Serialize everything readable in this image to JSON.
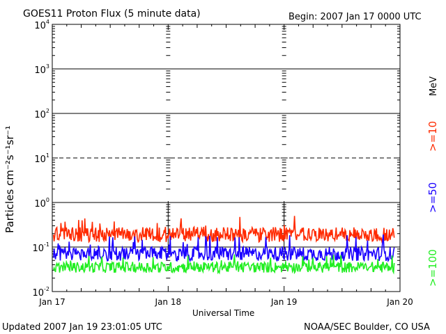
{
  "header": {
    "title": "GOES11 Proton Flux (5 minute data)",
    "begin": "Begin: 2007 Jan 17 0000 UTC"
  },
  "footer": {
    "updated": "Updated 2007 Jan 19 23:01:05 UTC",
    "source": "NOAA/SEC Boulder, CO USA"
  },
  "chart_data": {
    "type": "line",
    "title": "GOES11 Proton Flux (5 minute data)",
    "xlabel": "Universal Time",
    "ylabel": "Particles cm⁻²s⁻¹sr⁻¹",
    "yscale": "log",
    "ylim_exponents": [
      -2,
      4
    ],
    "y_ticks": [
      {
        "base": "10",
        "exp": "-2"
      },
      {
        "base": "10",
        "exp": "-1"
      },
      {
        "base": "10",
        "exp": "0"
      },
      {
        "base": "10",
        "exp": "1"
      },
      {
        "base": "10",
        "exp": "2"
      },
      {
        "base": "10",
        "exp": "3"
      },
      {
        "base": "10",
        "exp": "4"
      }
    ],
    "x_ticks": [
      "Jan 17",
      "Jan 18",
      "Jan 19",
      "Jan 20"
    ],
    "xlim_days": [
      0,
      3
    ],
    "legend_units": "MeV",
    "series": [
      {
        "name": ">=10",
        "color": "#ff2a00",
        "typical_flux": 0.19,
        "range": [
          0.1,
          0.55
        ]
      },
      {
        "name": ">=50",
        "color": "#1a00ff",
        "typical_flux": 0.07,
        "range": [
          0.04,
          0.2
        ]
      },
      {
        "name": ">=100",
        "color": "#22ee22",
        "typical_flux": 0.035,
        "range": [
          0.02,
          0.07
        ]
      }
    ]
  }
}
